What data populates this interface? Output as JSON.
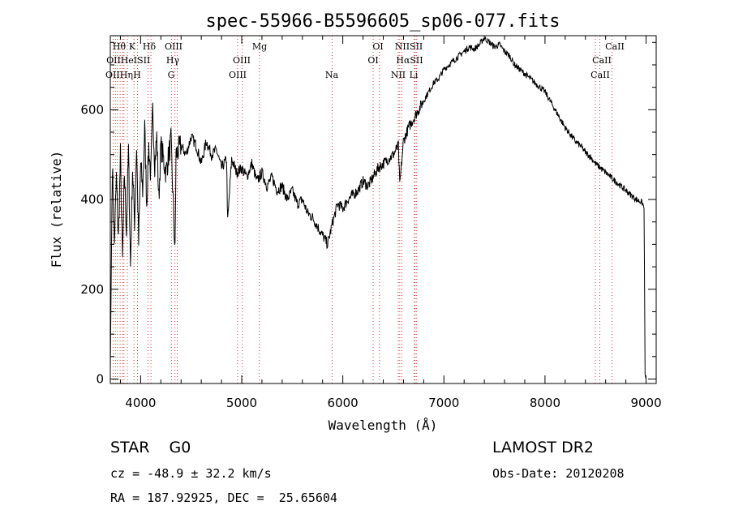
{
  "chart_data": {
    "type": "line",
    "title": "spec-55966-B5596605_sp06-077.fits",
    "xlabel": "Wavelength (Å)",
    "ylabel": "Flux (relative)",
    "xlim": [
      3700,
      9100
    ],
    "ylim": [
      -10,
      765
    ],
    "xticks": [
      4000,
      5000,
      6000,
      7000,
      8000,
      9000
    ],
    "yticks": [
      0,
      200,
      400,
      600
    ],
    "grid": false,
    "legend": "none",
    "series": [
      {
        "x": [
          3700,
          3720,
          3740,
          3760,
          3780,
          3800,
          3820,
          3840,
          3860,
          3880,
          3900,
          3920,
          3940,
          3960,
          3980,
          4000,
          4020,
          4040,
          4060,
          4080,
          4100,
          4120,
          4140,
          4160,
          4180,
          4200,
          4250,
          4300,
          4340,
          4350,
          4400,
          4450,
          4500,
          4550,
          4600,
          4650,
          4700,
          4750,
          4800,
          4850,
          4861,
          4900,
          4950,
          5000,
          5050,
          5100,
          5150,
          5200,
          5250,
          5300,
          5350,
          5400,
          5450,
          5500,
          5550,
          5600,
          5650,
          5700,
          5750,
          5800,
          5850,
          5900,
          5950,
          6000,
          6050,
          6100,
          6150,
          6200,
          6250,
          6300,
          6350,
          6400,
          6450,
          6500,
          6550,
          6563,
          6600,
          6650,
          6700,
          6750,
          6800,
          6850,
          6900,
          6950,
          7000,
          7050,
          7100,
          7150,
          7200,
          7250,
          7300,
          7350,
          7400,
          7450,
          7500,
          7550,
          7600,
          7650,
          7700,
          7750,
          7800,
          7850,
          7900,
          7950,
          8000,
          8050,
          8100,
          8150,
          8200,
          8250,
          8300,
          8350,
          8400,
          8450,
          8500,
          8550,
          8600,
          8650,
          8700,
          8750,
          8800,
          8850,
          8900,
          8950,
          8970,
          8980,
          8990,
          9000
        ],
        "y": [
          20,
          480,
          300,
          450,
          310,
          500,
          260,
          460,
          330,
          510,
          250,
          470,
          350,
          520,
          300,
          480,
          420,
          560,
          390,
          520,
          450,
          600,
          480,
          540,
          400,
          520,
          460,
          530,
          280,
          500,
          520,
          500,
          540,
          520,
          480,
          530,
          500,
          510,
          470,
          490,
          350,
          490,
          460,
          470,
          450,
          480,
          440,
          460,
          430,
          450,
          420,
          430,
          400,
          420,
          390,
          400,
          370,
          360,
          340,
          320,
          300,
          350,
          390,
          380,
          400,
          410,
          420,
          440,
          430,
          450,
          470,
          480,
          490,
          500,
          520,
          430,
          530,
          560,
          580,
          600,
          620,
          640,
          660,
          670,
          690,
          700,
          710,
          720,
          730,
          740,
          735,
          745,
          760,
          750,
          740,
          745,
          730,
          720,
          700,
          690,
          680,
          670,
          660,
          650,
          640,
          620,
          600,
          580,
          560,
          545,
          530,
          520,
          505,
          495,
          480,
          470,
          460,
          450,
          440,
          430,
          420,
          410,
          400,
          395,
          390,
          380,
          10,
          0
        ]
      }
    ],
    "line_markers": [
      {
        "wavelength": 3727,
        "labels": [
          "OII"
        ]
      },
      {
        "wavelength": 3750,
        "labels": [
          "OII"
        ]
      },
      {
        "wavelength": 3771,
        "labels": [
          "Hθ"
        ]
      },
      {
        "wavelength": 3797,
        "labels": [
          "Hη"
        ]
      },
      {
        "wavelength": 3820,
        "labels": [
          "HeI"
        ]
      },
      {
        "wavelength": 3835,
        "labels": [
          "Hη"
        ]
      },
      {
        "wavelength": 3869,
        "labels": [
          "K",
          "H"
        ]
      },
      {
        "wavelength": 3934,
        "labels": [
          "K"
        ]
      },
      {
        "wavelength": 3968,
        "labels": [
          "H"
        ]
      },
      {
        "wavelength": 4072,
        "labels": [
          "SII"
        ]
      },
      {
        "wavelength": 4102,
        "labels": [
          "Hδ"
        ]
      },
      {
        "wavelength": 4304,
        "labels": [
          "G"
        ]
      },
      {
        "wavelength": 4340,
        "labels": [
          "Hγ"
        ]
      },
      {
        "wavelength": 4363,
        "labels": [
          "OIII"
        ]
      },
      {
        "wavelength": 4959,
        "labels": [
          "OIII"
        ]
      },
      {
        "wavelength": 5007,
        "labels": [
          "OIII"
        ]
      },
      {
        "wavelength": 5175,
        "labels": [
          "Mg"
        ]
      },
      {
        "wavelength": 5894,
        "labels": [
          "Na"
        ]
      },
      {
        "wavelength": 6300,
        "labels": [
          "OI"
        ]
      },
      {
        "wavelength": 6363,
        "labels": [
          "OI"
        ]
      },
      {
        "wavelength": 6548,
        "labels": [
          "NII"
        ]
      },
      {
        "wavelength": 6563,
        "labels": [
          "Hα"
        ]
      },
      {
        "wavelength": 6583,
        "labels": [
          "NII"
        ]
      },
      {
        "wavelength": 6707,
        "labels": [
          "Li"
        ]
      },
      {
        "wavelength": 6716,
        "labels": [
          "SII"
        ]
      },
      {
        "wavelength": 6731,
        "labels": [
          "SII"
        ]
      },
      {
        "wavelength": 8498,
        "labels": [
          "CaII"
        ]
      },
      {
        "wavelength": 8542,
        "labels": [
          "CaII"
        ]
      },
      {
        "wavelength": 8662,
        "labels": [
          "CaII"
        ]
      }
    ],
    "line_label_rows": [
      [
        "Hθ",
        "K",
        "Hδ",
        "OIII",
        "Mg",
        "OI",
        "NIISII",
        "CaII"
      ],
      [
        "OII",
        "HeISII",
        "Hγ",
        "OIII",
        "OI",
        "HαSII",
        "CaII"
      ],
      [
        "OIIHη",
        "H",
        "G",
        "OIII",
        "Na",
        "NII",
        "Li",
        "CaII"
      ]
    ]
  },
  "info": {
    "object_class": "STAR    G0",
    "survey": "LAMOST DR2",
    "cz": "cz = -48.9 ± 32.2 km/s",
    "obs_date": "Obs-Date: 20120208",
    "radec": "RA = 187.92925, DEC =  25.65604"
  },
  "colors": {
    "spectrum": "#000000",
    "marker_line": "#cc0000",
    "background": "#ffffff"
  }
}
